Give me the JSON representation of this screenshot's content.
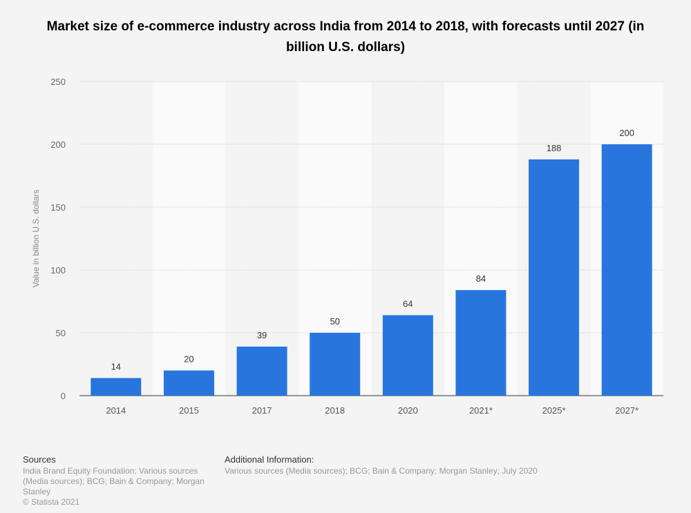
{
  "chart_data": {
    "type": "bar",
    "title": "Market size of e-commerce industry across India from 2014 to 2018, with forecasts until 2027 (in billion U.S. dollars)",
    "xlabel": "",
    "ylabel": "Value in billion U.S. dollars",
    "categories": [
      "2014",
      "2015",
      "2017",
      "2018",
      "2020",
      "2021*",
      "2025*",
      "2027*"
    ],
    "values": [
      14,
      20,
      39,
      50,
      64,
      84,
      188,
      200
    ],
    "ylim": [
      0,
      250
    ],
    "yticks": [
      0,
      50,
      100,
      150,
      200,
      250
    ],
    "grid": true,
    "bar_color": "#2876dd",
    "data_labels": true
  },
  "footer": {
    "sources_heading": "Sources",
    "sources_text": "India Brand Equity Foundation; Various sources (Media sources); BCG; Bain & Company; Morgan Stanley",
    "copyright": "© Statista 2021",
    "additional_heading": "Additional Information:",
    "additional_text": "Various sources (Media sources); BCG; Bain & Company; Morgan Stanley; July 2020"
  }
}
